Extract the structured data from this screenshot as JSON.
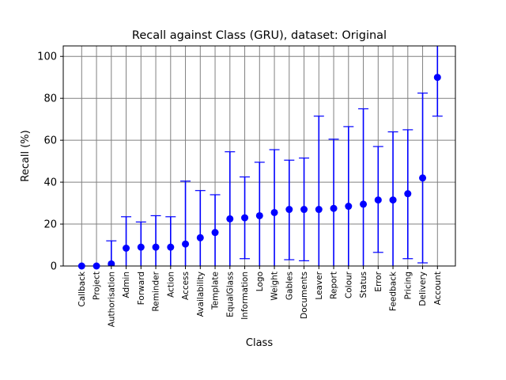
{
  "chart_data": {
    "type": "scatter",
    "title": "Recall against Class (GRU), dataset: Original",
    "xlabel": "Class",
    "ylabel": "Recall (%)",
    "ylim": [
      0,
      105
    ],
    "yticks": [
      0,
      20,
      40,
      60,
      80,
      100
    ],
    "grid": true,
    "color": "#0000ff",
    "categories": [
      "Callback",
      "Project",
      "Authorisation",
      "Admin",
      "Forward",
      "Reminder",
      "Action",
      "Access",
      "Availability",
      "Template",
      "EqualGlass",
      "Information",
      "Logo",
      "Weight",
      "Gables",
      "Documents",
      "Leaver",
      "Report",
      "Colour",
      "Status",
      "Error",
      "Feedback",
      "Pricing",
      "Delivery",
      "Account"
    ],
    "values": [
      0,
      0,
      1,
      8.5,
      9,
      9,
      9,
      10.5,
      13.5,
      16,
      22.5,
      23,
      24,
      25.5,
      27,
      27,
      27,
      27.5,
      28.5,
      29.5,
      31.5,
      31.5,
      34.5,
      42,
      90
    ],
    "error_lower": [
      0,
      0,
      0,
      0,
      0,
      0,
      0,
      0,
      0,
      0,
      0,
      3.5,
      0,
      0,
      3,
      2.5,
      0,
      0,
      0,
      0,
      6.5,
      0,
      3.5,
      1.5,
      71.5
    ],
    "error_upper": [
      0,
      0,
      12,
      23.5,
      21,
      24,
      23.5,
      40.5,
      36,
      34,
      54.5,
      42.5,
      49.5,
      55.5,
      50.5,
      51.5,
      71.5,
      60.5,
      66.5,
      75,
      57,
      64,
      65,
      82.5,
      108.5
    ]
  }
}
